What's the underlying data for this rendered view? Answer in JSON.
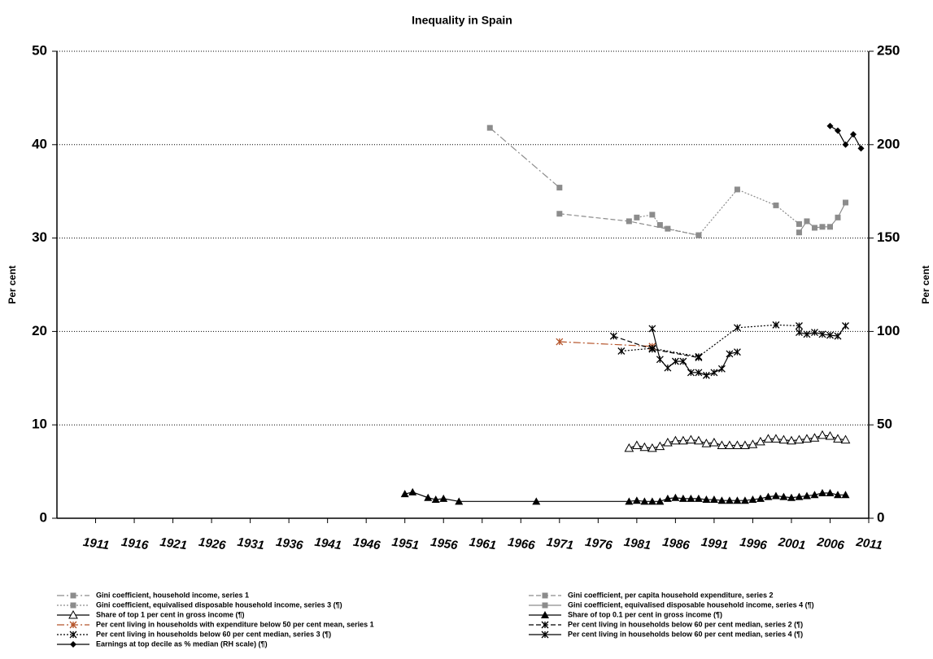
{
  "chart_data": {
    "type": "line",
    "title": "Inequality in Spain",
    "ylabel": "Per cent",
    "y2label": "Per cent",
    "xlim": [
      1906,
      2011
    ],
    "xticks": [
      1911,
      1916,
      1921,
      1926,
      1931,
      1936,
      1941,
      1946,
      1951,
      1956,
      1961,
      1966,
      1971,
      1976,
      1981,
      1986,
      1991,
      1996,
      2001,
      2006,
      2011
    ],
    "ylim": [
      0,
      50
    ],
    "yticks": [
      0,
      10,
      20,
      30,
      40,
      50
    ],
    "y2lim": [
      0,
      250
    ],
    "y2ticks": [
      0,
      50,
      100,
      150,
      200,
      250
    ],
    "grid": true,
    "series": [
      {
        "name": "Gini coefficient, household income, series 1",
        "color": "#8c8c8c",
        "dash": "dashdot",
        "marker": "square",
        "x": [
          1962,
          1971
        ],
        "values": [
          41.8,
          35.4
        ]
      },
      {
        "name": "Gini coefficient, per capita household expenditure, series 2",
        "color": "#8c8c8c",
        "dash": "dashed",
        "marker": "square",
        "x": [
          1971,
          1980,
          1989
        ],
        "values": [
          32.6,
          31.8,
          30.3
        ]
      },
      {
        "name": "Gini coefficient, equivalised disposable household income, series 3 (¶)",
        "color": "#8c8c8c",
        "dash": "dotted",
        "marker": "square",
        "x": [
          1981,
          1983,
          1984,
          1985,
          1989,
          1994,
          1999,
          2002
        ],
        "values": [
          32.2,
          32.5,
          31.4,
          31.0,
          30.3,
          35.2,
          33.5,
          31.5
        ]
      },
      {
        "name": "Gini coefficient, equivalised disposable household income, series 4 (¶)",
        "color": "#8c8c8c",
        "dash": "solid",
        "marker": "square",
        "x": [
          2002,
          2003,
          2004,
          2005,
          2006,
          2007,
          2008
        ],
        "values": [
          30.6,
          31.8,
          31.1,
          31.2,
          31.2,
          32.2,
          33.8
        ]
      },
      {
        "name": "Share of top 1 per cent in gross income (¶)",
        "color": "#000000",
        "dash": "solid",
        "marker": "open-triangle",
        "x": [
          1980,
          1981,
          1982,
          1983,
          1984,
          1985,
          1986,
          1987,
          1988,
          1989,
          1990,
          1991,
          1992,
          1993,
          1994,
          1995,
          1996,
          1997,
          1998,
          1999,
          2000,
          2001,
          2002,
          2003,
          2004,
          2005,
          2006,
          2007,
          2008
        ],
        "values": [
          7.5,
          7.8,
          7.6,
          7.5,
          7.7,
          8.1,
          8.3,
          8.3,
          8.4,
          8.3,
          8.0,
          8.1,
          7.8,
          7.8,
          7.8,
          7.8,
          7.9,
          8.2,
          8.5,
          8.5,
          8.4,
          8.3,
          8.4,
          8.5,
          8.6,
          8.9,
          8.8,
          8.5,
          8.4
        ]
      },
      {
        "name": "Share of top 0.1 per cent in gross income (¶)",
        "color": "#000000",
        "dash": "solid",
        "marker": "filled-triangle",
        "x": [
          1951,
          1952,
          1954,
          1955,
          1956,
          1958,
          1968,
          1980,
          1981,
          1982,
          1983,
          1984,
          1985,
          1986,
          1987,
          1988,
          1989,
          1990,
          1991,
          1992,
          1993,
          1994,
          1995,
          1996,
          1997,
          1998,
          1999,
          2000,
          2001,
          2002,
          2003,
          2004,
          2005,
          2006,
          2007,
          2008
        ],
        "values": [
          2.6,
          2.8,
          2.2,
          2.0,
          2.1,
          1.8,
          1.8,
          1.8,
          1.9,
          1.8,
          1.8,
          1.8,
          2.1,
          2.2,
          2.1,
          2.1,
          2.1,
          2.0,
          2.0,
          1.9,
          1.9,
          1.9,
          1.9,
          2.0,
          2.1,
          2.3,
          2.4,
          2.3,
          2.2,
          2.3,
          2.4,
          2.5,
          2.7,
          2.7,
          2.5,
          2.5
        ]
      },
      {
        "name": "Per cent living in households with expenditure below 50 per cent mean, series 1",
        "color": "#b5542a",
        "dash": "dashdot",
        "marker": "cross",
        "x": [
          1971,
          1983
        ],
        "values": [
          18.9,
          18.4
        ]
      },
      {
        "name": "Per cent living in households below 60 per cent median, series 2 (¶)",
        "color": "#000000",
        "dash": "dashed",
        "marker": "cross",
        "x": [
          1978,
          1983,
          1989
        ],
        "values": [
          19.5,
          18.1,
          17.2
        ]
      },
      {
        "name": "Per cent living in households below 60 per cent median, series 3 (¶)",
        "color": "#000000",
        "dash": "dotted",
        "marker": "cross",
        "x": [
          1979,
          1983,
          1989,
          1994,
          1999,
          2002
        ],
        "values": [
          17.9,
          18.2,
          17.3,
          20.4,
          20.7,
          20.6
        ]
      },
      {
        "name": "Per cent living in households below 60 per cent median, series 4 (¶)",
        "color": "#000000",
        "dash": "solid",
        "marker": "cross",
        "x": [
          1983,
          1984,
          1985,
          1986,
          1987,
          1988,
          1989,
          1990,
          1991,
          1992,
          1993,
          1994,
          null,
          2002,
          2003,
          2004,
          2005,
          2006,
          2007,
          2008
        ],
        "values": [
          20.3,
          17.0,
          16.1,
          16.8,
          16.8,
          15.6,
          15.6,
          15.3,
          15.6,
          16.0,
          17.6,
          17.8,
          null,
          19.9,
          19.7,
          19.9,
          19.7,
          19.6,
          19.5,
          20.6
        ]
      },
      {
        "name": "Earnings at top decile as % median (RH scale) (¶)",
        "color": "#000000",
        "dash": "solid",
        "marker": "diamond",
        "axis": "y2",
        "x": [
          2006,
          2007,
          2008,
          2009,
          2010
        ],
        "values": [
          210,
          207.5,
          200,
          205.5,
          198
        ]
      }
    ]
  }
}
